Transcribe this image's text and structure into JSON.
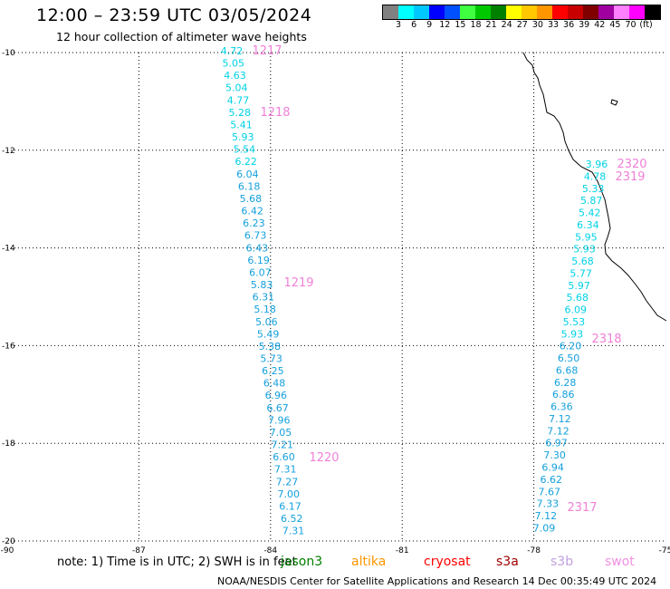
{
  "header": {
    "title": "12:00 – 23:59 UTC 03/05/2024",
    "subtitle": "12 hour collection of altimeter wave heights"
  },
  "colorbar": {
    "colors": [
      "#808080",
      "#00ffff",
      "#00c8ff",
      "#0000ff",
      "#0050ff",
      "#40ff40",
      "#00c800",
      "#008000",
      "#ffff00",
      "#ffc800",
      "#ff9600",
      "#ff0000",
      "#c80000",
      "#800000",
      "#a000a0",
      "#ff80ff",
      "#ff00ff",
      "#000000"
    ],
    "labels": [
      "3",
      "6",
      "9",
      "12",
      "15",
      "18",
      "21",
      "24",
      "27",
      "30",
      "33",
      "36",
      "39",
      "42",
      "45",
      "70",
      "(ft)"
    ]
  },
  "map": {
    "x_ticks": [
      "-90",
      "-87",
      "-84",
      "-81",
      "-78",
      "-75"
    ],
    "y_ticks": [
      "-10",
      "-12",
      "-14",
      "-16",
      "-18",
      "-20"
    ],
    "track_a": {
      "values": [
        "4.72",
        "5.05",
        "4.63",
        "5.04",
        "4.77",
        "5.28",
        "5.41",
        "5.93",
        "5.54",
        "6.22",
        "6.04",
        "6.18",
        "5.68",
        "6.42",
        "6.23",
        "6.73",
        "6.43",
        "6.19",
        "6.07",
        "5.83",
        "6.31",
        "5.18",
        "5.06",
        "5.49",
        "5.38",
        "5.73",
        "6.25",
        "6.48",
        "6.96",
        "6.67",
        "7.96",
        "7.05",
        "7.21",
        "6.60",
        "7.31",
        "7.27",
        "7.00",
        "6.17",
        "6.52",
        "7.31"
      ],
      "times": [
        "1217",
        "1218",
        "1219",
        "1220"
      ]
    },
    "track_b": {
      "values": [
        "3.96",
        "4.78",
        "5.33",
        "5.87",
        "5.42",
        "6.34",
        "5.95",
        "5.93",
        "5.68",
        "5.77",
        "5.97",
        "5.68",
        "6.09",
        "5.53",
        "5.93",
        "6.20",
        "6.50",
        "6.68",
        "6.28",
        "6.86",
        "6.36",
        "7.12",
        "7.12",
        "6.97",
        "7.30",
        "6.94",
        "6.62",
        "7.67",
        "7.33",
        "7.12",
        "7.09"
      ],
      "times": [
        "2320",
        "2319",
        "2318",
        "2317"
      ]
    },
    "colors": {
      "cyan": "#00d2e6",
      "blue": "#14a0dc",
      "time": "#f080d8",
      "coast": "#000000",
      "grid": "#000000"
    }
  },
  "footer": {
    "note": "note: 1) Time is in UTC; 2) SWH is in feet",
    "satellites": [
      {
        "name": "jason3",
        "color": "#008000"
      },
      {
        "name": "altika",
        "color": "#ff9600"
      },
      {
        "name": "cryosat",
        "color": "#ff0000"
      },
      {
        "name": "s3a",
        "color": "#a00000"
      },
      {
        "name": "s3b",
        "color": "#c0a0e0"
      },
      {
        "name": "swot",
        "color": "#f090e0"
      }
    ],
    "credit": "NOAA/NESDIS Center for Satellite Applications and Research   14 Dec 00:35:49 UTC 2024"
  }
}
